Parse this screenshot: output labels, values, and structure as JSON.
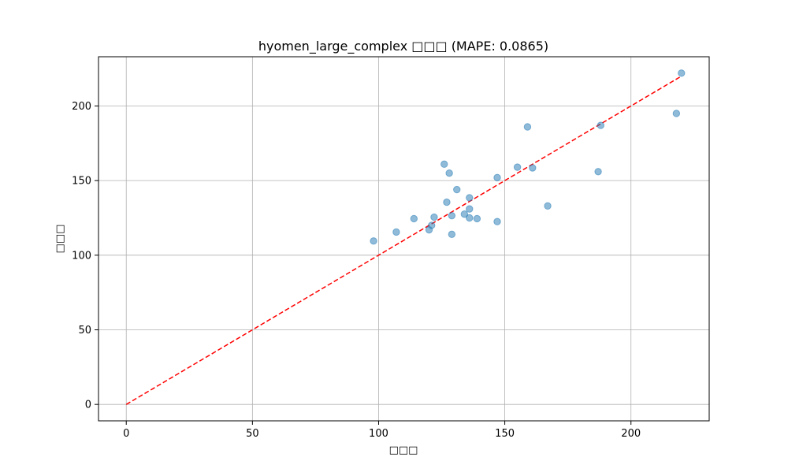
{
  "chart_data": {
    "type": "scatter",
    "title": "hyomen_large_complex □□□ (MAPE: 0.0865)",
    "xlabel": "□□□",
    "ylabel": "□□□",
    "xlim": [
      -11,
      231
    ],
    "ylim": [
      -11,
      233
    ],
    "xticks": [
      0,
      50,
      100,
      150,
      200
    ],
    "yticks": [
      0,
      50,
      100,
      150,
      200
    ],
    "grid": true,
    "reference_line": {
      "from": [
        0,
        0
      ],
      "to": [
        220,
        220
      ],
      "style": "dashed",
      "color": "#ff0000"
    },
    "marker_color": "#1f77b4",
    "marker_alpha": 0.5,
    "points": [
      {
        "x": 98,
        "y": 109.5
      },
      {
        "x": 107,
        "y": 115.5
      },
      {
        "x": 114,
        "y": 124.5
      },
      {
        "x": 120,
        "y": 117
      },
      {
        "x": 121,
        "y": 120
      },
      {
        "x": 122,
        "y": 125.5
      },
      {
        "x": 126,
        "y": 161
      },
      {
        "x": 127,
        "y": 135.5
      },
      {
        "x": 128,
        "y": 155
      },
      {
        "x": 129,
        "y": 126.5
      },
      {
        "x": 129,
        "y": 114
      },
      {
        "x": 131,
        "y": 144
      },
      {
        "x": 134,
        "y": 127.5
      },
      {
        "x": 136,
        "y": 138.5
      },
      {
        "x": 136,
        "y": 131
      },
      {
        "x": 136,
        "y": 125
      },
      {
        "x": 139,
        "y": 124.5
      },
      {
        "x": 147,
        "y": 152
      },
      {
        "x": 147,
        "y": 122.5
      },
      {
        "x": 155,
        "y": 159
      },
      {
        "x": 159,
        "y": 186
      },
      {
        "x": 161,
        "y": 158.5
      },
      {
        "x": 167,
        "y": 133
      },
      {
        "x": 187,
        "y": 156
      },
      {
        "x": 188,
        "y": 187
      },
      {
        "x": 218,
        "y": 195
      },
      {
        "x": 220,
        "y": 222
      }
    ]
  }
}
